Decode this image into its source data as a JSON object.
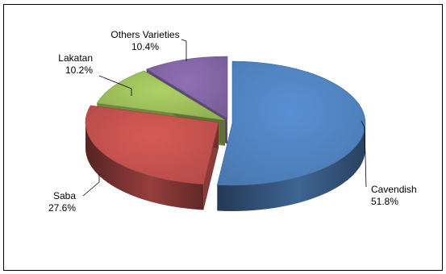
{
  "chart_data": {
    "type": "pie",
    "title": "",
    "style": "3d-exploded",
    "slices": [
      {
        "label": "Cavendish",
        "value": 51.8,
        "value_label": "51.8%",
        "color": "#4f81bd"
      },
      {
        "label": "Saba",
        "value": 27.6,
        "value_label": "27.6%",
        "color": "#c0504d"
      },
      {
        "label": "Lakatan",
        "value": 10.2,
        "value_label": "10.2%",
        "color": "#9bbb59"
      },
      {
        "label": "Others Varieties",
        "value": 10.4,
        "value_label": "10.4%",
        "color": "#8064a2"
      }
    ],
    "legend": "none",
    "data_labels": "outside with leader lines"
  }
}
